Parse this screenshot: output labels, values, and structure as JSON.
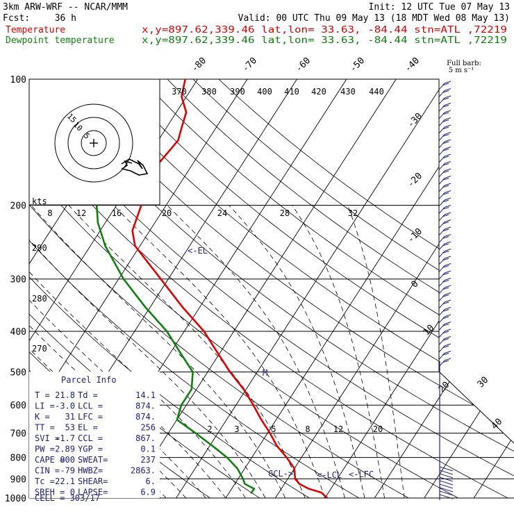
{
  "header": {
    "model": "3km ARW-WRF -- NCAR/MMM",
    "init": "Init: 12 UTC Tue 07 May 13",
    "fcst_label": "Fcst:",
    "fcst_value": "36 h",
    "valid": "Valid: 00 UTC Thu 09 May 13 (18 MDT Wed 08 May 13)",
    "temp_label": "Temperature",
    "temp_loc": "x,y=897.62,339.46   lat,lon= 33.63, -84.44  stn=ATL ,72219",
    "dew_label": "Dewpoint temperature",
    "dew_loc": "x,y=897.62,339.46   lat,lon= 33.63, -84.44  stn=ATL ,72219",
    "barb_key": "Full barb:",
    "barb_unit": "5 m s⁻¹"
  },
  "colors": {
    "temperature": "#e00000",
    "dewpoint": "#108010",
    "annotation": "#202080"
  },
  "chart_data": {
    "type": "line",
    "chart_kind": "skew-T log-p sounding",
    "y_axis": "pressure (hPa), log scale",
    "pressure_ticks": [
      100,
      200,
      300,
      400,
      500,
      600,
      700,
      800,
      900,
      1000
    ],
    "isotherm_labels": [
      "-80",
      "-70",
      "-60",
      "-50",
      "-40",
      "-30",
      "-20",
      "-10",
      "0",
      "10",
      "20",
      "30",
      "40"
    ],
    "theta_labels": [
      "290",
      "280",
      "270"
    ],
    "hodograph_x_labels": [
      "8",
      "12",
      "16",
      "20",
      "24",
      "28",
      "32"
    ],
    "theta_e_labels": [
      "370",
      "380",
      "390",
      "400",
      "410",
      "420",
      "430",
      "440"
    ],
    "mixing_ratio_labels": [
      "2",
      "3",
      "5",
      "8",
      "12",
      "20"
    ],
    "hodo_rings": [
      "15",
      "10",
      "5"
    ],
    "hodo_units": "kts",
    "series": [
      {
        "name": "Temperature",
        "points": [
          [
            1000,
            20.5
          ],
          [
            970,
            18.5
          ],
          [
            950,
            15.5
          ],
          [
            925,
            13.0
          ],
          [
            900,
            11.5
          ],
          [
            850,
            10.0
          ],
          [
            800,
            7.0
          ],
          [
            750,
            3.5
          ],
          [
            700,
            0.5
          ],
          [
            650,
            -3.0
          ],
          [
            600,
            -6.5
          ],
          [
            550,
            -10.5
          ],
          [
            500,
            -15.5
          ],
          [
            450,
            -20.5
          ],
          [
            400,
            -26.0
          ],
          [
            350,
            -33.5
          ],
          [
            300,
            -41.5
          ],
          [
            270,
            -47.0
          ],
          [
            250,
            -51.0
          ],
          [
            230,
            -53.5
          ],
          [
            200,
            -55.0
          ],
          [
            175,
            -56.5
          ],
          [
            160,
            -57.0
          ],
          [
            150,
            -56.5
          ],
          [
            140,
            -56.0
          ],
          [
            130,
            -57.0
          ],
          [
            120,
            -58.0
          ],
          [
            110,
            -61.0
          ],
          [
            100,
            -62.5
          ]
        ]
      },
      {
        "name": "Dewpoint temperature",
        "points": [
          [
            975,
            4.5
          ],
          [
            950,
            4.5
          ],
          [
            925,
            2.0
          ],
          [
            900,
            1.0
          ],
          [
            850,
            -1.5
          ],
          [
            800,
            -5.0
          ],
          [
            750,
            -9.5
          ],
          [
            700,
            -14.5
          ],
          [
            650,
            -20.0
          ],
          [
            600,
            -21.0
          ],
          [
            550,
            -21.0
          ],
          [
            500,
            -23.0
          ],
          [
            450,
            -28.0
          ],
          [
            400,
            -33.5
          ],
          [
            350,
            -41.0
          ],
          [
            300,
            -49.0
          ],
          [
            250,
            -57.0
          ],
          [
            220,
            -61.5
          ],
          [
            200,
            -64.0
          ],
          [
            180,
            -66.5
          ],
          [
            165,
            -68.0
          ],
          [
            150,
            -71.0
          ],
          [
            135,
            -74.0
          ],
          [
            120,
            -77.0
          ],
          [
            110,
            -79.5
          ],
          [
            100,
            -81.5
          ]
        ]
      }
    ],
    "annotations": [
      "<-EL",
      "M",
      "CCL->",
      "<-LCL",
      "<-LFC"
    ],
    "parcel_info": {
      "title": "Parcel Info",
      "rows": [
        [
          "T  =",
          "21.8",
          "Td =",
          "14.1"
        ],
        [
          "LI =",
          "-3.0",
          "LCL =",
          "874."
        ],
        [
          "K  =",
          "31",
          "LFC =",
          "874."
        ],
        [
          "TT =",
          "53",
          "EL =",
          "256"
        ],
        [
          "SVI =",
          "-1.7",
          "CCL =",
          "867."
        ],
        [
          "PW =",
          "2.89",
          "YGP =",
          "0.1"
        ],
        [
          "CAPE =",
          "800",
          "SWEAT=",
          "237"
        ],
        [
          "CIN =",
          "-79",
          "HWBZ=",
          "2863."
        ],
        [
          "Tc =",
          "22.1",
          "SHEAR=",
          "6."
        ],
        [
          "SREH =",
          "0",
          "LAPSE=",
          "6.9"
        ]
      ],
      "cell": "CELL = 303/17"
    }
  }
}
